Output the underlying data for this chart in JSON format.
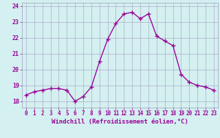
{
  "x": [
    0,
    1,
    2,
    3,
    4,
    5,
    6,
    7,
    8,
    9,
    10,
    11,
    12,
    13,
    14,
    15,
    16,
    17,
    18,
    19,
    20,
    21,
    22,
    23
  ],
  "y": [
    18.4,
    18.6,
    18.7,
    18.8,
    18.8,
    18.7,
    18.0,
    18.3,
    18.9,
    20.5,
    21.9,
    22.9,
    23.5,
    23.6,
    23.2,
    23.5,
    22.1,
    21.8,
    21.5,
    19.7,
    19.2,
    19.0,
    18.9,
    18.7
  ],
  "line_color": "#990099",
  "marker": "+",
  "marker_size": 4,
  "marker_linewidth": 1.0,
  "bg_color": "#d4f0f0",
  "grid_color": "#aaaacc",
  "xlabel": "Windchill (Refroidissement éolien,°C)",
  "xlabel_color": "#990099",
  "tick_color": "#990099",
  "ylim": [
    17.6,
    24.2
  ],
  "xlim": [
    -0.5,
    23.5
  ],
  "yticks": [
    18,
    19,
    20,
    21,
    22,
    23,
    24
  ],
  "xticks": [
    0,
    1,
    2,
    3,
    4,
    5,
    6,
    7,
    8,
    9,
    10,
    11,
    12,
    13,
    14,
    15,
    16,
    17,
    18,
    19,
    20,
    21,
    22,
    23
  ],
  "line_width": 1.0,
  "spine_color": "#9999bb"
}
